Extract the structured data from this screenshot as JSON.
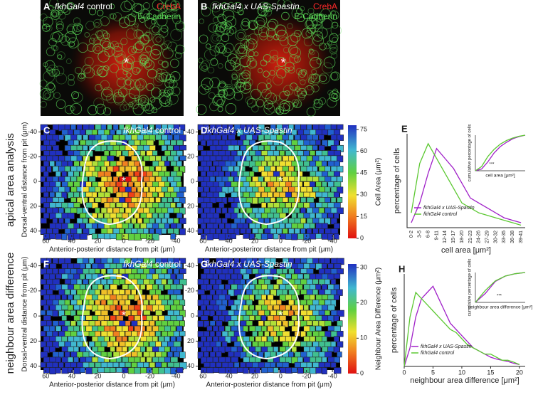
{
  "panels": {
    "A": {
      "letter": "A",
      "genotype": "fkhGal4",
      "condition": "control",
      "stain1": "CrebA",
      "stain2": "E-Cadherin"
    },
    "B": {
      "letter": "B",
      "genotype": "fkhGal4  x UAS-Spastin",
      "stain1": "CrebA",
      "stain2": "E-Cadherin"
    },
    "C": {
      "letter": "C",
      "genotype": "fkhGal4",
      "condition": "control",
      "xlabel": "Anterior-posterior distance from pit (μm)",
      "ylabel": "Dorsal-ventral distance from pit (μm)"
    },
    "D": {
      "letter": "D",
      "genotype": "fkhGal4  x UAS-Spastin",
      "xlabel": "Anterior-posteriror distance from pit (μm)"
    },
    "F": {
      "letter": "F",
      "genotype": "fkhGal4",
      "condition": "control",
      "xlabel": "Anterior-posterior distance from pit (μm)",
      "ylabel": "Dorsal-ventral distance from pit (μm)"
    },
    "G": {
      "letter": "G",
      "genotype": "fkhGal4  x UAS-Spastin",
      "xlabel": "Anterior-posterior distance from pit (μm)"
    }
  },
  "row_labels": [
    "apical area analysis",
    "neighbour area difference"
  ],
  "maps": {
    "xlim": [
      64,
      -46
    ],
    "ylim": [
      -46,
      43
    ],
    "xticks": [
      60,
      40,
      20,
      0,
      -20,
      -40
    ],
    "yticks": [
      -40,
      -20,
      0,
      20,
      40
    ]
  },
  "colorbars": [
    {
      "label": "Cell Area (μm²)",
      "lim": [
        0,
        78
      ],
      "ticks": [
        0,
        15,
        30,
        45,
        60,
        75
      ]
    },
    {
      "label": "Neighbour Area Difference (μm²)",
      "lim": [
        0,
        31
      ],
      "ticks": [
        0,
        10,
        20,
        30
      ]
    }
  ],
  "chart_data": [
    {
      "type": "line",
      "panel_label": "E",
      "xlabel": "cell area [μm²]",
      "ylabel": "percentage of cells",
      "categories": [
        "0-2",
        "3-5",
        "6-8",
        "9-11",
        "12-14",
        "15-17",
        "18-20",
        "21-23",
        "24-26",
        "27-29",
        "30-32",
        "33-35",
        "36-38",
        "39-41"
      ],
      "ylim": [
        0,
        19
      ],
      "series": [
        {
          "name": "fkhGal4 x UAS-Spastin",
          "color": "#a020c8",
          "values": [
            1,
            5,
            11,
            16,
            14,
            12,
            9,
            6,
            5,
            4,
            3,
            2,
            1.5,
            1
          ]
        },
        {
          "name": "fkhGal4 control",
          "color": "#5cc832",
          "values": [
            3,
            13,
            17,
            14,
            11,
            8,
            5,
            4,
            3,
            2.5,
            2,
            1.5,
            1,
            0.5
          ]
        }
      ],
      "inset": {
        "xlabel": "cell area [μm²]",
        "ylabel": "cumulative percentage of cells",
        "annotation": "***",
        "x": [
          0,
          5,
          10,
          15,
          20,
          25,
          30,
          35,
          40
        ],
        "xlim": [
          0,
          40
        ],
        "ylim": [
          0,
          100
        ],
        "series": [
          {
            "color": "#a020c8",
            "values": [
              0,
              5,
              25,
              50,
              68,
              80,
              90,
              96,
              100
            ]
          },
          {
            "color": "#5cc832",
            "values": [
              0,
              12,
              40,
              60,
              75,
              85,
              92,
              97,
              100
            ]
          }
        ]
      }
    },
    {
      "type": "line",
      "panel_label": "H",
      "xlabel": "neighbour area difference [μm²]",
      "ylabel": "percentage of cells",
      "x": [
        0,
        1,
        2,
        3,
        4,
        5,
        6,
        7,
        8,
        9,
        10,
        11,
        12,
        13,
        14,
        15,
        16,
        17,
        18,
        19,
        20
      ],
      "xlim": [
        0,
        21
      ],
      "xticks": [
        0,
        5,
        10,
        15,
        20
      ],
      "ylim": [
        0,
        15
      ],
      "series": [
        {
          "name": "fkhGal4 x UAS-Spastin",
          "color": "#a020c8",
          "values": [
            0,
            3,
            8,
            11,
            12,
            13,
            11,
            9,
            7,
            6,
            5,
            4,
            3,
            2.5,
            2,
            1.5,
            1.2,
            1,
            0.8,
            0.5,
            0.3
          ]
        },
        {
          "name": "fkhGal4 control",
          "color": "#5cc832",
          "values": [
            0,
            8,
            12,
            11,
            10,
            9,
            8,
            7,
            6,
            5.5,
            4.5,
            3.5,
            3,
            2.5,
            2,
            2,
            1.5,
            1,
            1,
            0.7,
            0.3
          ]
        }
      ],
      "inset": {
        "xlabel": "neighbour area difference [μm²]",
        "ylabel": "cumulative percentage of cells",
        "annotation": "***",
        "x": [
          0,
          5,
          10,
          15,
          20,
          25
        ],
        "xlim": [
          0,
          25
        ],
        "ylim": [
          0,
          100
        ],
        "series": [
          {
            "color": "#a020c8",
            "values": [
              0,
              30,
              70,
              88,
              96,
              100
            ]
          },
          {
            "color": "#5cc832",
            "values": [
              0,
              40,
              72,
              88,
              96,
              100
            ]
          }
        ]
      }
    }
  ]
}
